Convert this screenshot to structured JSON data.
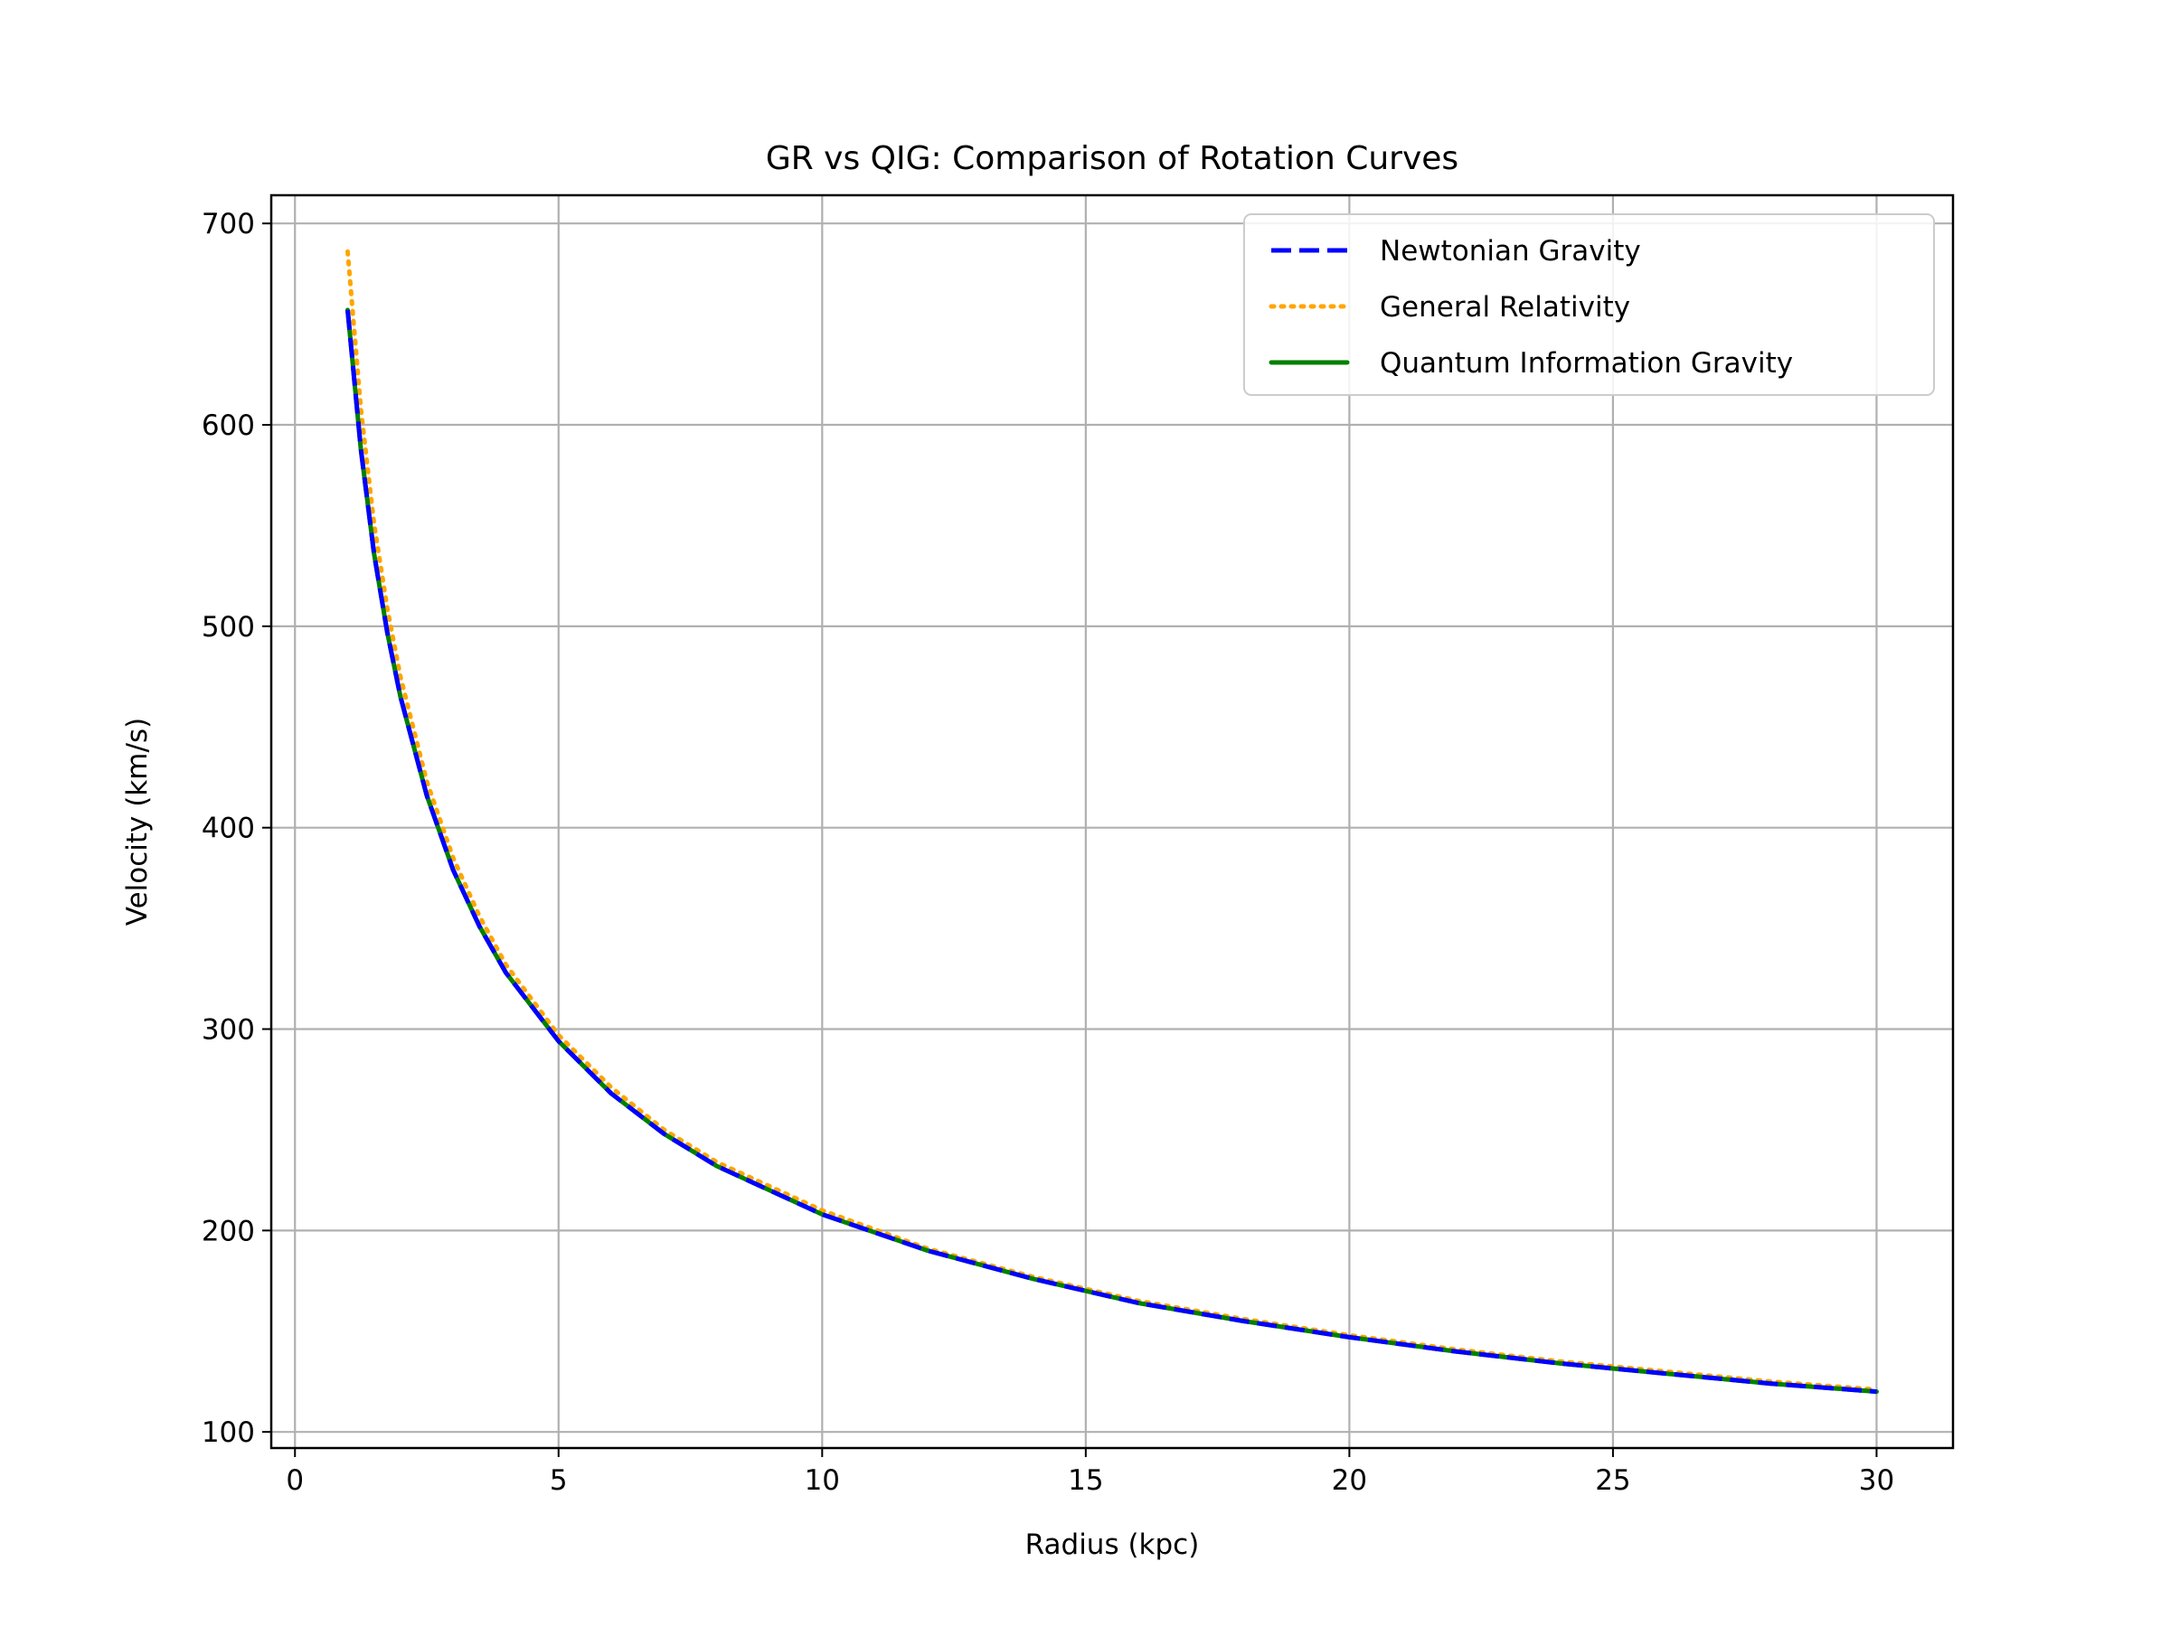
{
  "chart_data": {
    "type": "line",
    "title": "GR vs QIG: Comparison of Rotation Curves",
    "xlabel": "Radius (kpc)",
    "ylabel": "Velocity (km/s)",
    "xlim": [
      -0.45,
      31.45
    ],
    "ylim": [
      92,
      714
    ],
    "xticks": [
      0,
      5,
      10,
      15,
      20,
      25,
      30
    ],
    "yticks": [
      100,
      200,
      300,
      400,
      500,
      600,
      700
    ],
    "grid": true,
    "legend_position": "top-right",
    "x": [
      1.0,
      1.25,
      1.5,
      1.75,
      2.0,
      2.5,
      3.0,
      3.5,
      4.0,
      5.0,
      6.0,
      7.0,
      8.0,
      10.0,
      12.0,
      14.0,
      16.0,
      18.0,
      20.0,
      22.0,
      24.0,
      26.0,
      28.0,
      30.0
    ],
    "series": [
      {
        "name": "Newtonian Gravity",
        "color": "#0000ff",
        "style": "dashed",
        "values": [
          657,
          588,
          536,
          497,
          465,
          416,
          379,
          351,
          328,
          294,
          268,
          248,
          232,
          208,
          190,
          176,
          164,
          155,
          147,
          140,
          134,
          129,
          124,
          120
        ]
      },
      {
        "name": "General Relativity",
        "color": "#ffa500",
        "style": "dotted",
        "values": [
          686,
          608,
          551,
          509,
          475,
          423,
          385,
          356,
          332,
          297,
          271,
          250,
          234,
          210,
          191,
          177,
          165,
          156,
          148,
          141,
          135,
          130,
          125,
          121
        ]
      },
      {
        "name": "Quantum Information Gravity",
        "color": "#008000",
        "style": "solid",
        "values": [
          657,
          588,
          536,
          497,
          465,
          416,
          379,
          351,
          328,
          294,
          268,
          248,
          232,
          208,
          190,
          176,
          164,
          155,
          147,
          140,
          134,
          129,
          124,
          120
        ]
      }
    ]
  }
}
